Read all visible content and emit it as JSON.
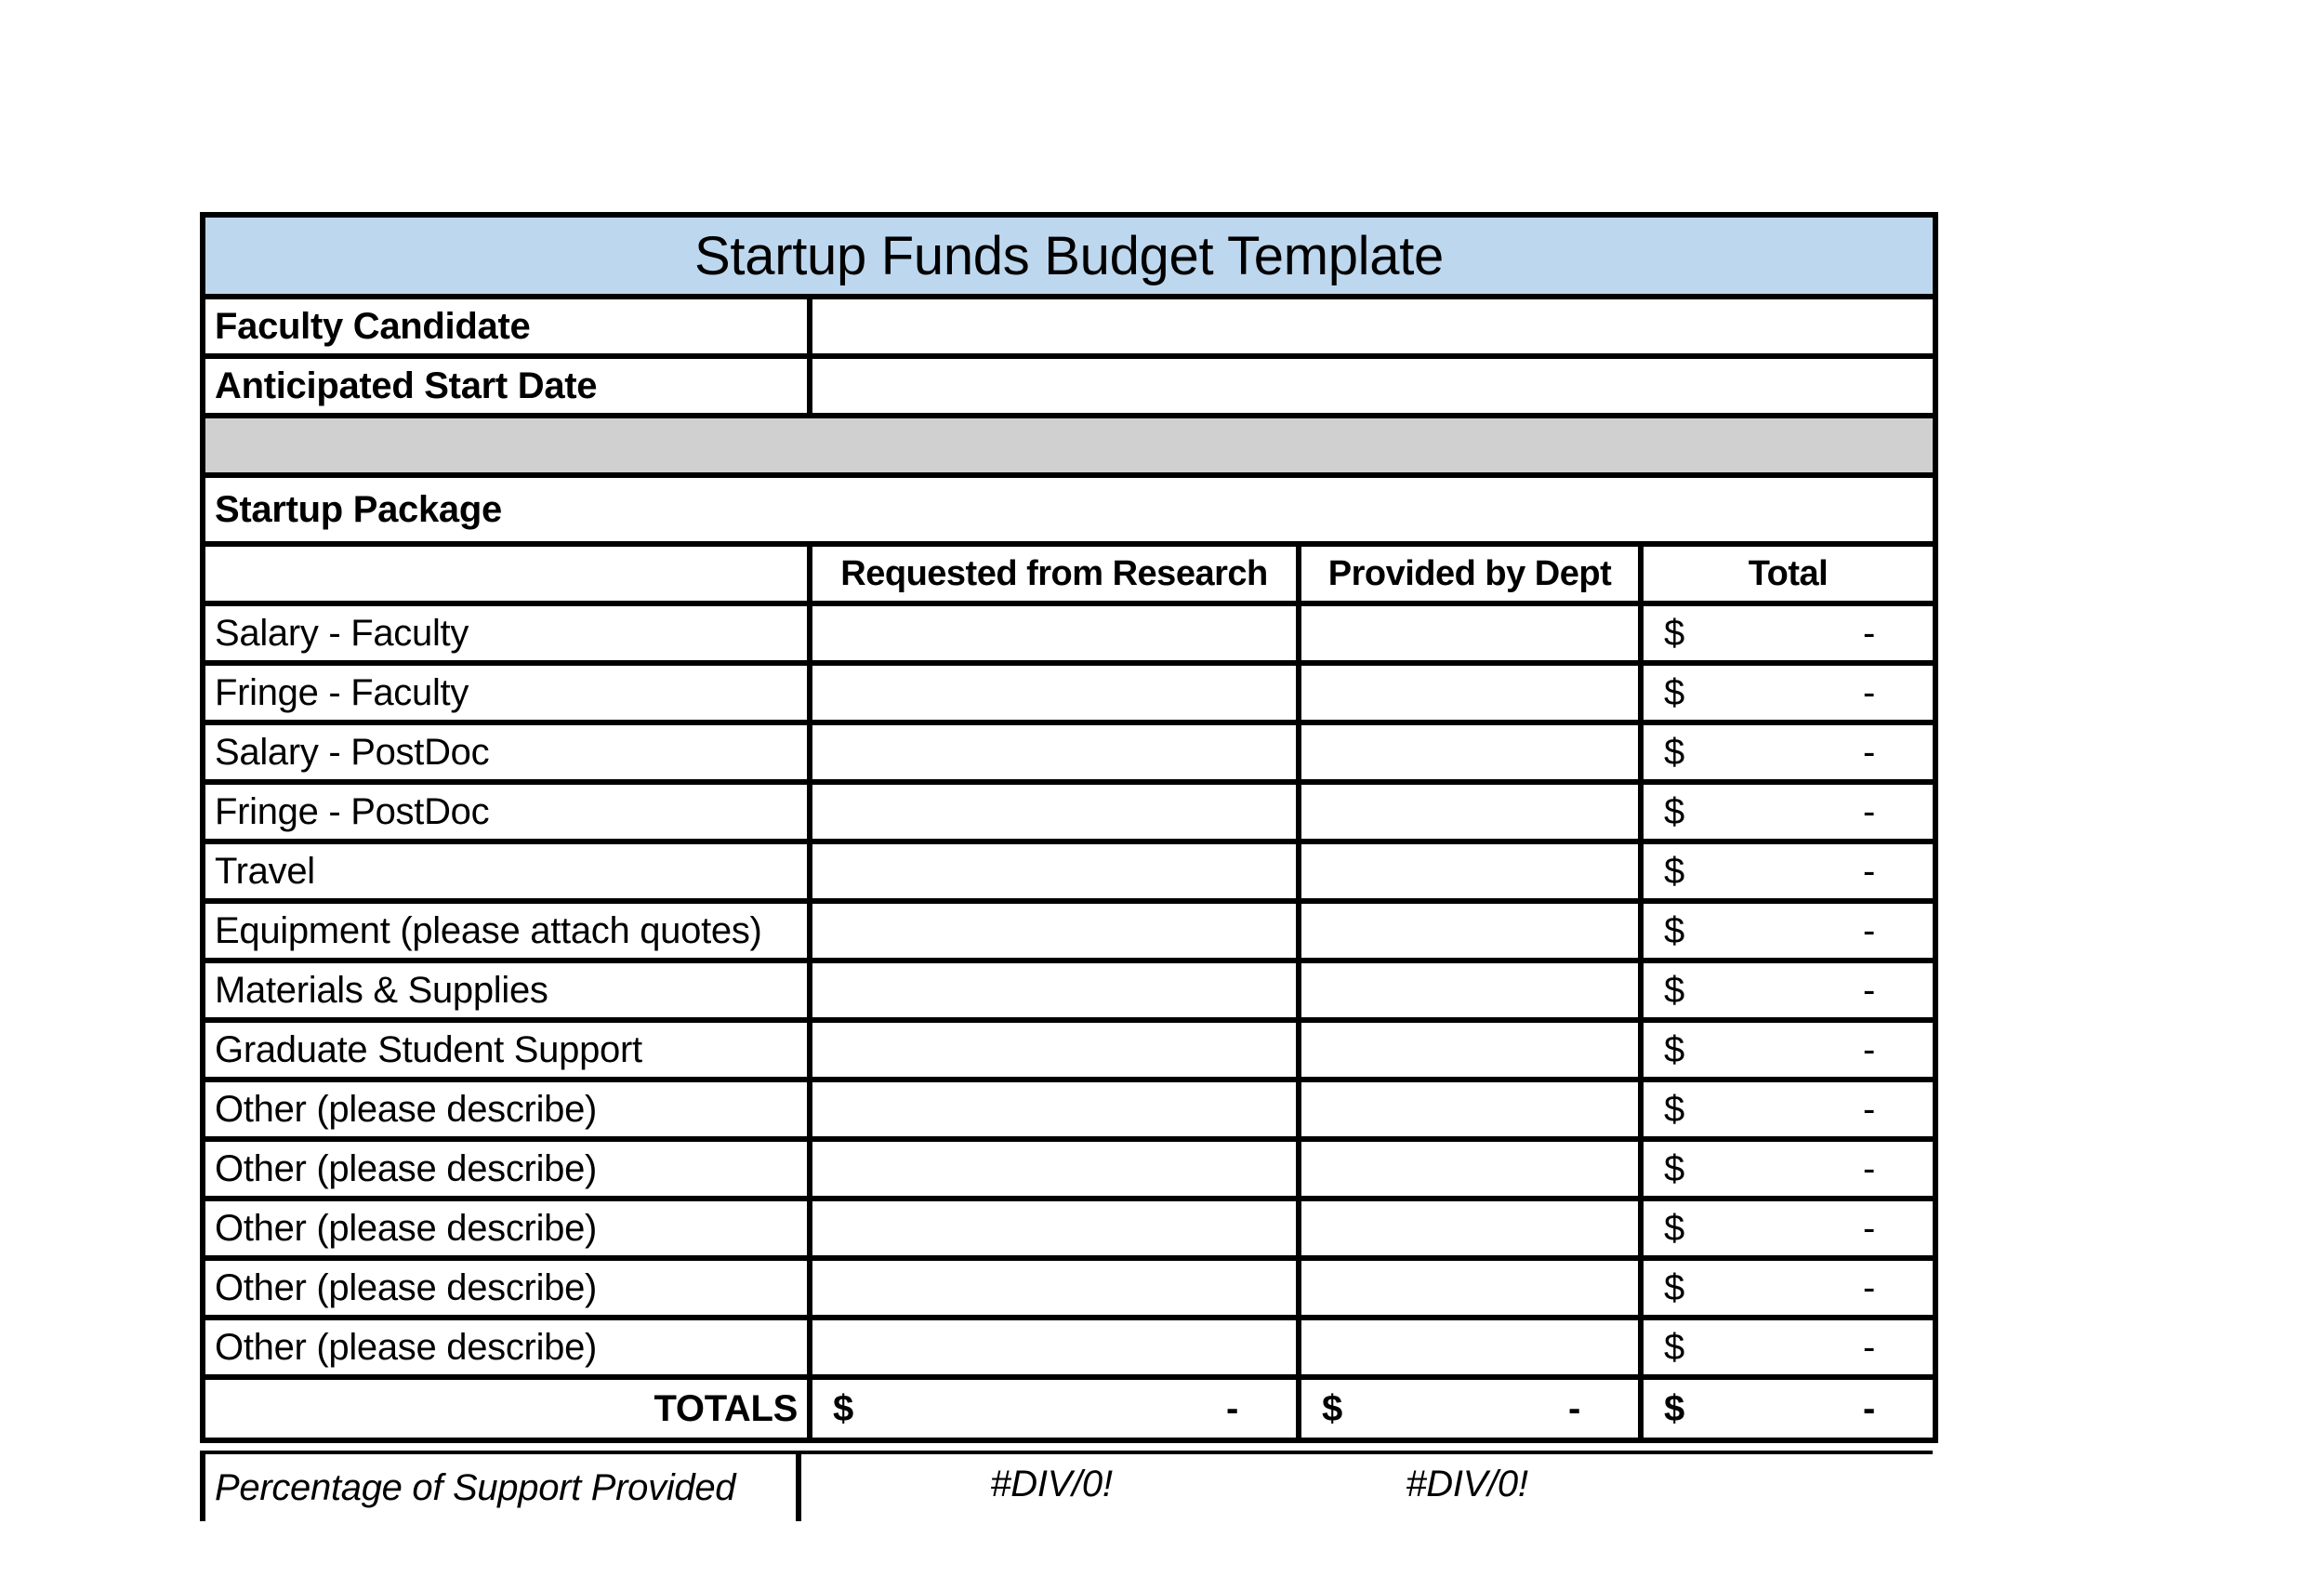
{
  "title": "Startup Funds Budget Template",
  "fields": {
    "faculty_candidate": {
      "label": "Faculty Candidate",
      "value": ""
    },
    "anticipated_start_date": {
      "label": "Anticipated Start Date",
      "value": ""
    }
  },
  "section": {
    "header": "Startup Package"
  },
  "columns": {
    "requested": "Requested from Research",
    "provided": "Provided by Dept",
    "total": "Total"
  },
  "currency": {
    "symbol": "$",
    "empty_amount": "-"
  },
  "line_items": [
    "Salary - Faculty",
    "Fringe - Faculty",
    "Salary - PostDoc",
    "Fringe - PostDoc",
    "Travel",
    "Equipment (please attach quotes)",
    "Materials & Supplies",
    "Graduate Student Support",
    "Other (please describe)",
    "Other (please describe)",
    "Other (please describe)",
    "Other (please describe)",
    "Other (please describe)"
  ],
  "totals": {
    "label": "TOTALS"
  },
  "percentage": {
    "label": "Percentage of Support Provided",
    "requested_value": "#DIV/0!",
    "provided_value": "#DIV/0!"
  },
  "colors": {
    "title_bg": "#BDD7EE",
    "spacer_bg": "#D0D0D0",
    "border": "#000000",
    "page_bg": "#FFFFFF"
  }
}
